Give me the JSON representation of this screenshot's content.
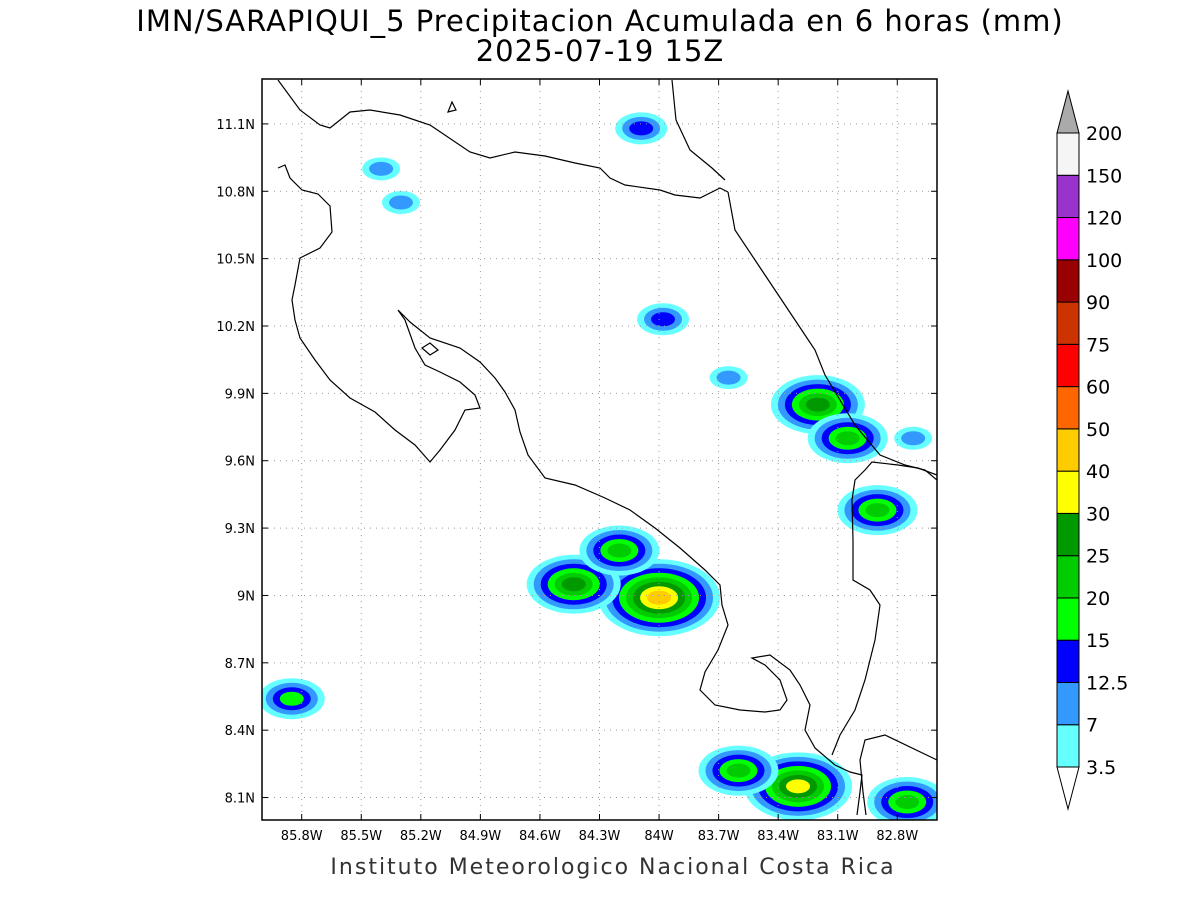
{
  "title": {
    "line1": "IMN/SARAPIQUI_5 Precipitacion Acumulada en 6 horas (mm)",
    "line2": "2025-07-19 15Z"
  },
  "footer": "Instituto Meteorologico Nacional Costa Rica",
  "map": {
    "lon_range": [
      -86.0,
      -82.6
    ],
    "lat_range": [
      8.0,
      11.3
    ],
    "lon_ticks": [
      {
        "value": -85.8,
        "label": "85.8W"
      },
      {
        "value": -85.5,
        "label": "85.5W"
      },
      {
        "value": -85.2,
        "label": "85.2W"
      },
      {
        "value": -84.9,
        "label": "84.9W"
      },
      {
        "value": -84.6,
        "label": "84.6W"
      },
      {
        "value": -84.3,
        "label": "84.3W"
      },
      {
        "value": -84.0,
        "label": "84W"
      },
      {
        "value": -83.7,
        "label": "83.7W"
      },
      {
        "value": -83.4,
        "label": "83.4W"
      },
      {
        "value": -83.1,
        "label": "83.1W"
      },
      {
        "value": -82.8,
        "label": "82.8W"
      }
    ],
    "lat_ticks": [
      {
        "value": 11.1,
        "label": "11.1N"
      },
      {
        "value": 10.8,
        "label": "10.8N"
      },
      {
        "value": 10.5,
        "label": "10.5N"
      },
      {
        "value": 10.2,
        "label": "10.2N"
      },
      {
        "value": 9.9,
        "label": "9.9N"
      },
      {
        "value": 9.6,
        "label": "9.6N"
      },
      {
        "value": 9.3,
        "label": "9.3N"
      },
      {
        "value": 9.0,
        "label": "9N"
      },
      {
        "value": 8.7,
        "label": "8.7N"
      },
      {
        "value": 8.4,
        "label": "8.4N"
      },
      {
        "value": 8.1,
        "label": "8.1N"
      }
    ],
    "grid": "dotted"
  },
  "colorbar": {
    "orientation": "vertical",
    "levels": [
      {
        "label": "3.5",
        "color": "#66ffff"
      },
      {
        "label": "7",
        "color": "#3399ff"
      },
      {
        "label": "12.5",
        "color": "#0000ff"
      },
      {
        "label": "15",
        "color": "#00ff00"
      },
      {
        "label": "20",
        "color": "#00cc00"
      },
      {
        "label": "25",
        "color": "#009900"
      },
      {
        "label": "30",
        "color": "#ffff00"
      },
      {
        "label": "40",
        "color": "#ffcc00"
      },
      {
        "label": "50",
        "color": "#ff6600"
      },
      {
        "label": "60",
        "color": "#ff0000"
      },
      {
        "label": "75",
        "color": "#cc3300"
      },
      {
        "label": "90",
        "color": "#990000"
      },
      {
        "label": "100",
        "color": "#ff00ff"
      },
      {
        "label": "120",
        "color": "#9933cc"
      },
      {
        "label": "150",
        "color": "#f5f5f5"
      },
      {
        "label": "200",
        "color": "#aaaaaa"
      }
    ],
    "below_color": "#ffffff",
    "above_color": "#aaaaaa"
  },
  "precip_cells": [
    {
      "lon": -84.0,
      "lat": 8.99,
      "level": 7
    },
    {
      "lon": -84.43,
      "lat": 9.05,
      "level": 5
    },
    {
      "lon": -84.2,
      "lat": 9.2,
      "level": 4
    },
    {
      "lon": -83.3,
      "lat": 8.15,
      "level": 6
    },
    {
      "lon": -83.2,
      "lat": 9.85,
      "level": 5
    },
    {
      "lon": -83.05,
      "lat": 9.7,
      "level": 4
    },
    {
      "lon": -82.9,
      "lat": 9.38,
      "level": 4
    },
    {
      "lon": -82.75,
      "lat": 8.08,
      "level": 4
    },
    {
      "lon": -83.6,
      "lat": 8.22,
      "level": 4
    },
    {
      "lon": -85.85,
      "lat": 8.54,
      "level": 3
    },
    {
      "lon": -83.98,
      "lat": 10.23,
      "level": 2
    },
    {
      "lon": -84.09,
      "lat": 11.08,
      "level": 2
    },
    {
      "lon": -85.4,
      "lat": 10.9,
      "level": 1
    },
    {
      "lon": -83.65,
      "lat": 9.97,
      "level": 1
    },
    {
      "lon": -82.72,
      "lat": 9.7,
      "level": 1
    },
    {
      "lon": -85.3,
      "lat": 10.75,
      "level": 1
    }
  ]
}
